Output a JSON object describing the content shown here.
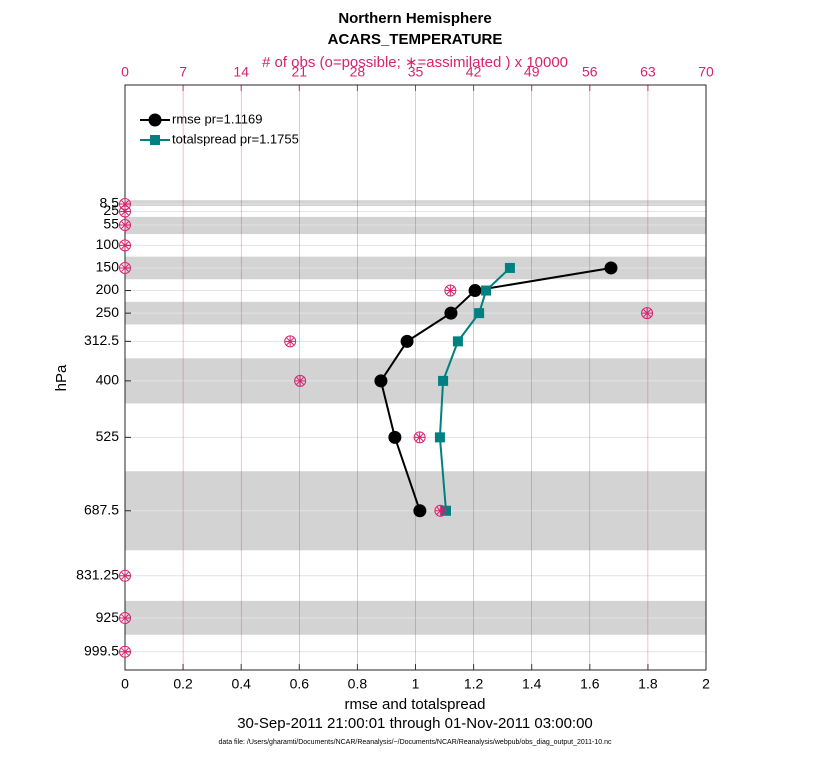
{
  "chart_data": {
    "type": "profile",
    "title": "Northern Hemisphere",
    "subtitle": "ACARS_TEMPERATURE",
    "x2_label": "# of obs (o=possible; ∗=assimilated ) x 10000",
    "x_label": "rmse and totalspread",
    "y_label": "hPa",
    "time_range": "30-Sep-2011 21:00:01 through 01-Nov-2011 03:00:00",
    "footnote": "data file: /Users/gharamti/Documents/NCAR/Reanalysis/~/Documents/NCAR/Reanalysis/webpub/obs_diag_output_2011-10.nc",
    "xlim": [
      0,
      2
    ],
    "xticks": [
      0,
      0.2,
      0.4,
      0.6,
      0.8,
      1,
      1.2,
      1.4,
      1.6,
      1.8,
      2
    ],
    "x2lim": [
      0,
      70
    ],
    "x2ticks": [
      0,
      7,
      14,
      21,
      28,
      35,
      42,
      49,
      56,
      63,
      70
    ],
    "x2_color": "#d6246e",
    "ylim": [
      1040,
      -255
    ],
    "yticks": [
      8.5,
      25,
      55,
      100,
      150,
      200,
      250,
      312.5,
      400,
      525,
      687.5,
      831.25,
      925,
      999.5
    ],
    "shaded_layers": [
      [
        0,
        13
      ],
      [
        37,
        75
      ],
      [
        125,
        175
      ],
      [
        225,
        275
      ],
      [
        350,
        450
      ],
      [
        600,
        775
      ],
      [
        887,
        962
      ]
    ],
    "grid": true,
    "legend": "upper left",
    "series": [
      {
        "name": "rmse pr=1.1169",
        "color": "#000000",
        "marker": "circle",
        "levels": [
          150,
          200,
          250,
          312.5,
          400,
          525,
          687.5
        ],
        "values": [
          1.673,
          1.205,
          1.122,
          0.971,
          0.881,
          0.929,
          1.015
        ]
      },
      {
        "name": "totalspread pr=1.1755",
        "color": "#008080",
        "marker": "square",
        "levels": [
          150,
          200,
          250,
          312.5,
          400,
          525,
          687.5
        ],
        "values": [
          1.325,
          1.243,
          1.219,
          1.146,
          1.095,
          1.084,
          1.105
        ]
      },
      {
        "name": "possible",
        "axis": "x2",
        "color": "#d6246e",
        "marker": "open-circle",
        "levels": [
          8.5,
          25,
          55,
          100,
          150,
          200,
          250,
          312.5,
          400,
          525,
          687.5,
          831.25,
          925,
          999.5
        ],
        "values": [
          0,
          0,
          0,
          0,
          0,
          39.2,
          62.9,
          19.9,
          21.1,
          35.5,
          38.0,
          0,
          0,
          0
        ]
      },
      {
        "name": "assimilated",
        "axis": "x2",
        "color": "#d6246e",
        "marker": "asterisk",
        "levels": [
          8.5,
          25,
          55,
          100,
          150,
          200,
          250,
          312.5,
          400,
          525,
          687.5,
          831.25,
          925,
          999.5
        ],
        "values": [
          0,
          0,
          0,
          0,
          0,
          39.2,
          62.9,
          19.9,
          21.1,
          35.5,
          38.0,
          0,
          0,
          0
        ]
      }
    ]
  }
}
